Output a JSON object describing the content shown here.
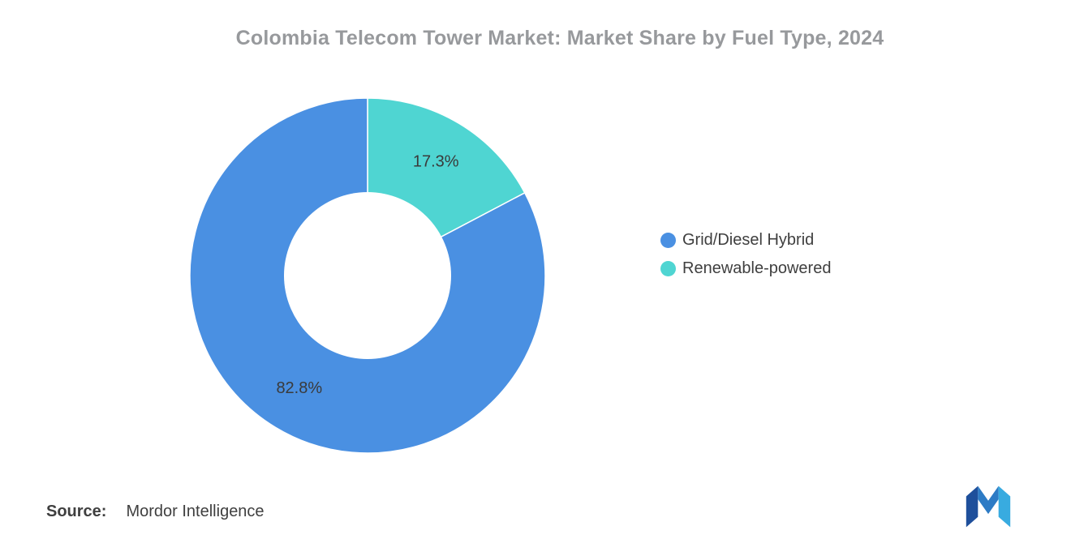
{
  "chart_data": {
    "type": "pie",
    "subtype": "donut",
    "title": "Colombia Telecom Tower Market: Market Share by Fuel Type, 2024",
    "categories": [
      "Grid/Diesel Hybrid",
      "Renewable-powered"
    ],
    "values": [
      82.8,
      17.3
    ],
    "unit": "%",
    "legend_position": "right",
    "inner_radius_ratio": 0.47,
    "slices_clockwise_from_top": [
      {
        "label": "Renewable-powered",
        "value": 17.3,
        "display": "17.3%",
        "color": "#4FD5D2"
      },
      {
        "label": "Grid/Diesel Hybrid",
        "value": 82.8,
        "display": "82.8%",
        "color": "#4A90E2"
      }
    ]
  },
  "legend": [
    {
      "label": "Grid/Diesel Hybrid",
      "color": "#4A90E2"
    },
    {
      "label": "Renewable-powered",
      "color": "#4FD5D2"
    }
  ],
  "source": {
    "label": "Source:",
    "value": "Mordor Intelligence"
  }
}
